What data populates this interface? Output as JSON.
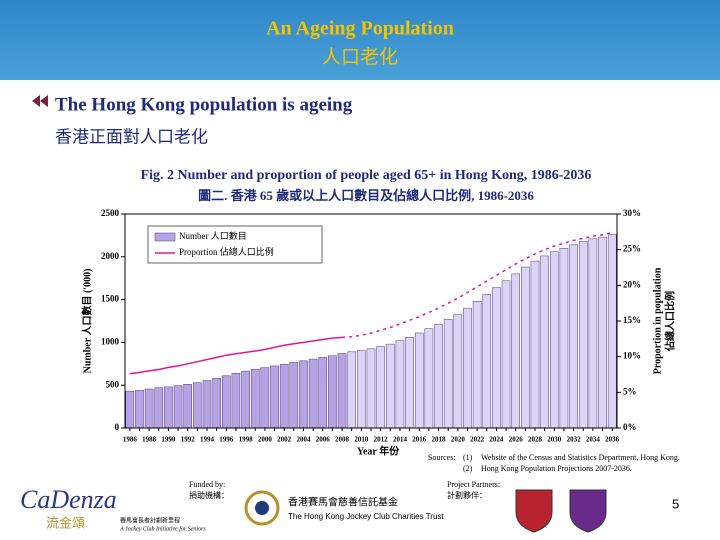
{
  "slide": {
    "title": "An Ageing Population",
    "title_zh": "人口老化",
    "bullet": "The Hong Kong population is ageing",
    "bullet_zh": "香港正面對人口老化",
    "page_number": 5
  },
  "footer": {
    "funded_by": "Funded by:",
    "funded_by_zh": "捐助機構：",
    "partners": "Project Partners:",
    "partners_zh": "計劃夥伴：",
    "trust_zh": "香港賽馬會慈善信託基金",
    "trust_en": "The Hong Kong Jockey Club Charities Trust",
    "logo": "CaDenza",
    "logo_zh": "流金頌",
    "initiative_zh": "賽馬會長者計劃新里程",
    "initiative_en": "A Jockey Club Initiative for Seniors"
  },
  "sources": {
    "heading": "Sources:",
    "items": [
      {
        "num": "(1)",
        "text": "Website of the Census and Statistics Department, Hong Kong."
      },
      {
        "num": "(2)",
        "text": "Hong Kong Population Projections 2007-2036."
      }
    ]
  },
  "chart_data": {
    "type": "bar_line",
    "title": "Fig. 2 Number and proportion of people aged 65+ in Hong Kong, 1986-2036",
    "subtitle": "圖二. 香港 65 歲或以上人口數目及佔總人口比例, 1986-2036",
    "x_label": "Year 年份",
    "y_label": "Number 人口數目 ('000)",
    "y2_label": [
      "Proportion in population",
      "佔總人口比例"
    ],
    "categories": [
      "1986",
      null,
      "1988",
      null,
      "1990",
      null,
      "1992",
      null,
      "1994",
      null,
      "1996",
      null,
      "1998",
      null,
      "2000",
      null,
      "2002",
      null,
      "2004",
      null,
      "2006",
      null,
      "2008",
      null,
      "2010",
      null,
      "2012",
      null,
      "2014",
      null,
      "2016",
      null,
      "2018",
      null,
      "2020",
      null,
      "2022",
      null,
      "2024",
      null,
      "2026",
      null,
      "2028",
      null,
      "2030",
      null,
      "2032",
      null,
      "2034",
      null,
      "2036"
    ],
    "series": [
      {
        "name": "Number 人口數目",
        "kind": "bar",
        "color": "#b7a2e6",
        "colors": [
          "#b7a2e6",
          "#b7a2e6",
          "#b7a2e6",
          "#b7a2e6",
          "#b7a2e6",
          "#b7a2e6",
          "#b7a2e6",
          "#b7a2e6",
          "#b7a2e6",
          "#b7a2e6",
          "#b7a2e6",
          "#b7a2e6",
          "#b7a2e6",
          "#b7a2e6",
          "#b7a2e6",
          "#b7a2e6",
          "#b7a2e6",
          "#b7a2e6",
          "#b7a2e6",
          "#b7a2e6",
          "#b7a2e6",
          "#b7a2e6",
          "#b7a2e6",
          "#dcd4f6",
          "#dcd4f6",
          "#dcd4f6",
          "#dcd4f6",
          "#dcd4f6",
          "#dcd4f6",
          "#dcd4f6",
          "#dcd4f6",
          "#dcd4f6",
          "#dcd4f6",
          "#dcd4f6",
          "#dcd4f6",
          "#dcd4f6",
          "#dcd4f6",
          "#dcd4f6",
          "#dcd4f6",
          "#dcd4f6",
          "#dcd4f6",
          "#dcd4f6",
          "#dcd4f6",
          "#dcd4f6",
          "#dcd4f6",
          "#dcd4f6",
          "#dcd4f6",
          "#dcd4f6",
          "#dcd4f6",
          "#dcd4f6",
          "#dcd4f6"
        ],
        "values": [
          430,
          440,
          455,
          470,
          480,
          495,
          510,
          530,
          555,
          580,
          610,
          640,
          665,
          685,
          705,
          725,
          745,
          765,
          785,
          805,
          825,
          845,
          870,
          890,
          905,
          925,
          950,
          980,
          1020,
          1060,
          1110,
          1160,
          1210,
          1270,
          1330,
          1400,
          1480,
          1560,
          1640,
          1720,
          1800,
          1880,
          1950,
          2010,
          2060,
          2100,
          2140,
          2180,
          2210,
          2230,
          2260
        ]
      },
      {
        "name": "Proportion 佔總人口比例",
        "kind": "line",
        "axis": "y2",
        "color": "#e0169b",
        "styles": [
          "solid",
          "solid",
          "solid",
          "solid",
          "solid",
          "solid",
          "solid",
          "solid",
          "solid",
          "solid",
          "solid",
          "solid",
          "solid",
          "solid",
          "solid",
          "solid",
          "solid",
          "solid",
          "solid",
          "solid",
          "solid",
          "solid",
          "solid",
          "dashed",
          "dashed",
          "dashed",
          "dashed",
          "dashed",
          "dashed",
          "dashed",
          "dashed",
          "dashed",
          "dashed",
          "dashed",
          "dashed",
          "dashed",
          "dashed",
          "dashed",
          "dashed",
          "dashed",
          "dashed",
          "dashed",
          "dashed",
          "dashed",
          "dashed",
          "dashed",
          "dashed",
          "dashed",
          "dashed",
          "dashed",
          "dashed"
        ],
        "values": [
          7.6,
          7.8,
          8.0,
          8.2,
          8.5,
          8.7,
          9.0,
          9.3,
          9.6,
          9.9,
          10.2,
          10.4,
          10.6,
          10.8,
          11.0,
          11.3,
          11.6,
          11.8,
          12.0,
          12.2,
          12.4,
          12.6,
          12.7,
          12.8,
          13.0,
          13.3,
          13.7,
          14.1,
          14.6,
          15.1,
          15.6,
          16.2,
          16.8,
          17.5,
          18.2,
          19.0,
          19.8,
          20.6,
          21.4,
          22.2,
          23.0,
          23.7,
          24.4,
          25.0,
          25.5,
          25.9,
          26.3,
          26.6,
          26.9,
          27.1,
          27.4
        ]
      }
    ],
    "ylim": [
      0,
      2500
    ],
    "yticks": [
      0,
      500,
      1000,
      1500,
      2000,
      2500
    ],
    "y2lim": [
      0,
      30
    ],
    "y2ticks": [
      {
        "value": 0,
        "label": "0%"
      },
      {
        "value": 5,
        "label": "5%"
      },
      {
        "value": 10,
        "label": "10%"
      },
      {
        "value": 15,
        "label": "15%"
      },
      {
        "value": 20,
        "label": "20%"
      },
      {
        "value": 25,
        "label": "25%"
      },
      {
        "value": 30,
        "label": "30%"
      }
    ],
    "legend": "upper left"
  }
}
